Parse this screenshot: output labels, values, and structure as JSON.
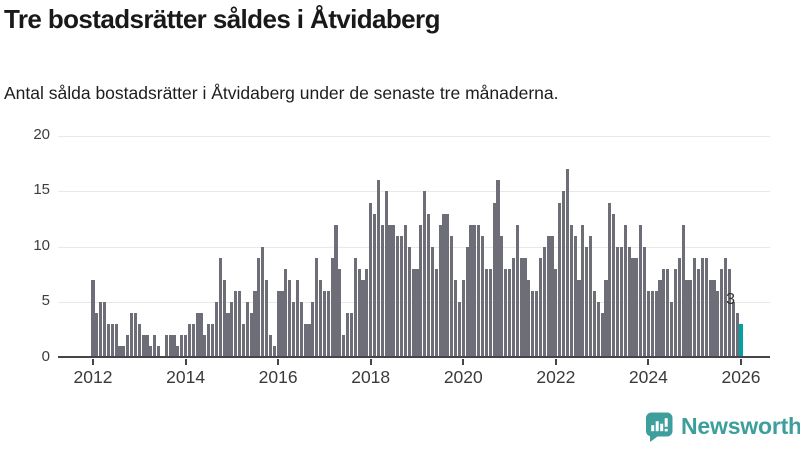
{
  "header": {
    "title": "Tre bostadsrätter såldes i Åtvidaberg",
    "subtitle": "Antal sålda bostadsrätter i Åtvidaberg under de senaste tre månaderna."
  },
  "chart_data": {
    "type": "bar",
    "title": "Tre bostadsrätter såldes i Åtvidaberg",
    "xlabel": "",
    "ylabel": "",
    "ylim": [
      0,
      20
    ],
    "yticks": [
      0,
      5,
      10,
      15,
      20
    ],
    "xticks": [
      2012,
      2014,
      2016,
      2018,
      2020,
      2022,
      2024,
      2026
    ],
    "grid": true,
    "legend": "none",
    "start_month": "2012-01",
    "end_month": "2026-01",
    "series": [
      {
        "year": 2012,
        "values": [
          7,
          4,
          5,
          5,
          3,
          3,
          3,
          1,
          1,
          2,
          4,
          4
        ]
      },
      {
        "year": 2013,
        "values": [
          3,
          2,
          2,
          1,
          2,
          1,
          0,
          2,
          2,
          2,
          1,
          2
        ]
      },
      {
        "year": 2014,
        "values": [
          2,
          3,
          3,
          4,
          4,
          2,
          3,
          3,
          5,
          9,
          7,
          4
        ]
      },
      {
        "year": 2015,
        "values": [
          5,
          6,
          6,
          3,
          5,
          4,
          6,
          9,
          10,
          7,
          2,
          1
        ]
      },
      {
        "year": 2016,
        "values": [
          6,
          6,
          8,
          7,
          5,
          7,
          5,
          3,
          3,
          5,
          9,
          7
        ]
      },
      {
        "year": 2017,
        "values": [
          6,
          6,
          9,
          12,
          8,
          2,
          4,
          4,
          9,
          8,
          7,
          8
        ]
      },
      {
        "year": 2018,
        "values": [
          14,
          13,
          16,
          12,
          15,
          12,
          12,
          11,
          11,
          12,
          10,
          8
        ]
      },
      {
        "year": 2019,
        "values": [
          8,
          12,
          15,
          13,
          10,
          8,
          12,
          13,
          13,
          11,
          7,
          5
        ]
      },
      {
        "year": 2020,
        "values": [
          7,
          10,
          12,
          12,
          12,
          11,
          8,
          8,
          14,
          16,
          11,
          8
        ]
      },
      {
        "year": 2021,
        "values": [
          8,
          9,
          12,
          9,
          9,
          7,
          6,
          6,
          9,
          10,
          11,
          11
        ]
      },
      {
        "year": 2022,
        "values": [
          8,
          14,
          15,
          17,
          12,
          11,
          7,
          12,
          10,
          11,
          6,
          5
        ]
      },
      {
        "year": 2023,
        "values": [
          4,
          7,
          14,
          13,
          10,
          10,
          12,
          10,
          9,
          9,
          12,
          10
        ]
      },
      {
        "year": 2024,
        "values": [
          6,
          6,
          6,
          7,
          8,
          8,
          5,
          8,
          9,
          12,
          7,
          7
        ]
      },
      {
        "year": 2025,
        "values": [
          9,
          8,
          9,
          9,
          7,
          7,
          6,
          8,
          9,
          8,
          5,
          4
        ]
      },
      {
        "year": 2026,
        "values": [
          3
        ]
      }
    ],
    "highlight": {
      "position": "last",
      "value": 3,
      "label": "3",
      "color": "#00a2a2"
    },
    "bar_color": "#6e6e78",
    "axis_color": "#454549",
    "grid_color": "#e8e8e8",
    "tick_label_color": "#3d3d3d"
  },
  "annotation": {
    "last_value_label": "3"
  },
  "footer": {
    "brand": "Newsworthy",
    "brand_color": "#3d9e9b",
    "logo_icon": "bar-chart-speech-bubble-icon"
  }
}
